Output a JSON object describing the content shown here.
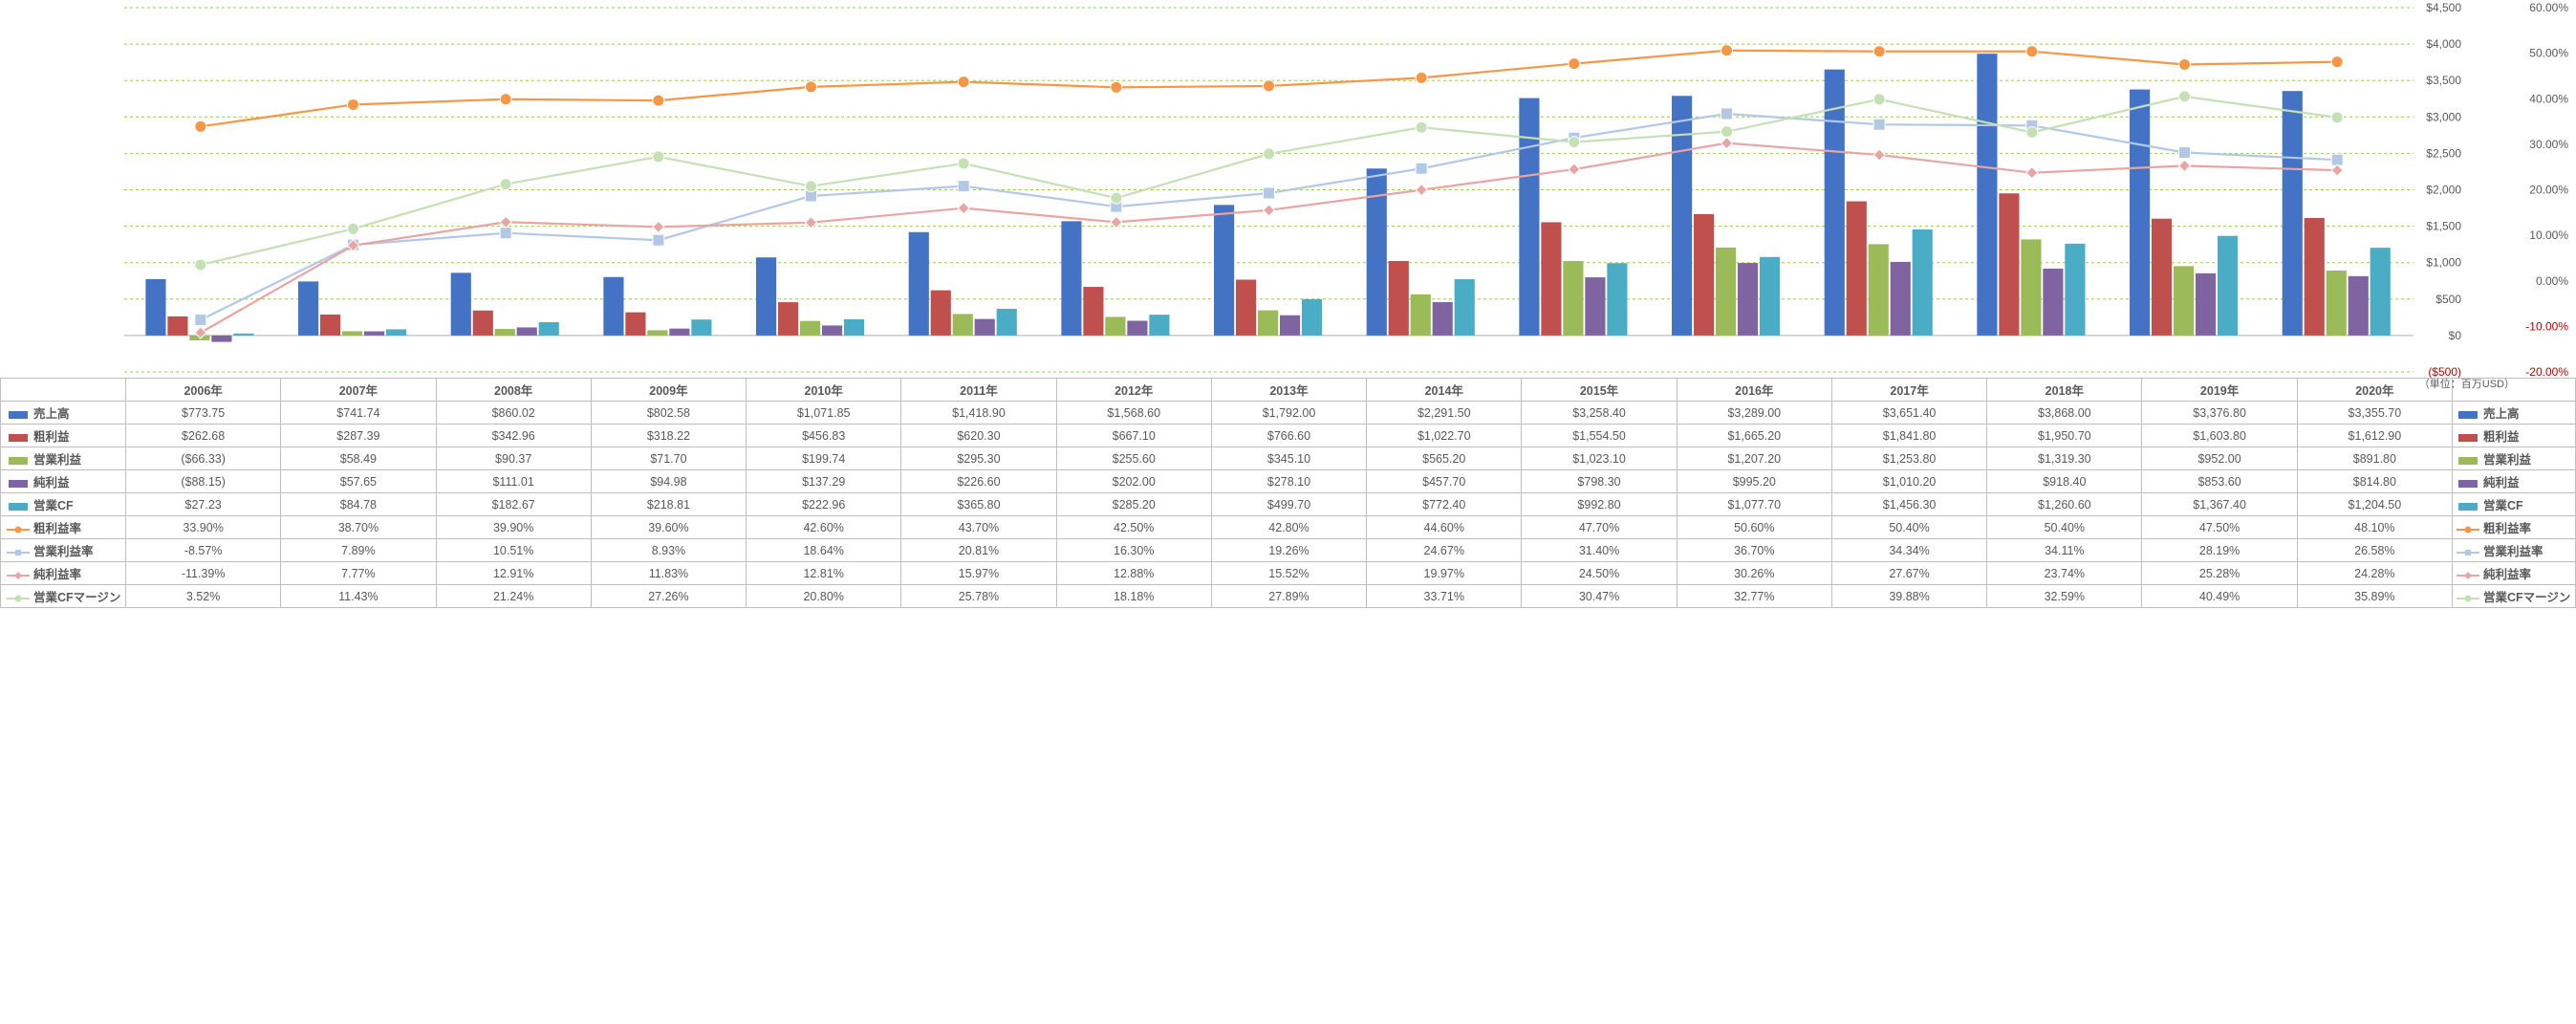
{
  "years": [
    "2006年",
    "2007年",
    "2008年",
    "2009年",
    "2010年",
    "2011年",
    "2012年",
    "2013年",
    "2014年",
    "2015年",
    "2016年",
    "2017年",
    "2018年",
    "2019年",
    "2020年"
  ],
  "unit_note": "（単位：百万USD）",
  "primary_axis": {
    "min": -500,
    "max": 4500,
    "step": 500,
    "format": "usd_paren_neg"
  },
  "secondary_axis": {
    "min": -20,
    "max": 60,
    "step": 10,
    "format": "percent2",
    "zero_color": "#c00000",
    "neg_color": "#c00000"
  },
  "series": [
    {
      "key": "revenue",
      "label": "売上高",
      "type": "bar",
      "axis": "primary",
      "color": "#4472c4",
      "values": [
        773.75,
        741.74,
        860.02,
        802.58,
        1071.85,
        1418.9,
        1568.6,
        1792.0,
        2291.5,
        3258.4,
        3289.0,
        3651.4,
        3868.0,
        3376.8,
        3355.7
      ],
      "display": [
        "$773.75",
        "$741.74",
        "$860.02",
        "$802.58",
        "$1,071.85",
        "$1,418.90",
        "$1,568.60",
        "$1,792.00",
        "$2,291.50",
        "$3,258.40",
        "$3,289.00",
        "$3,651.40",
        "$3,868.00",
        "$3,376.80",
        "$3,355.70"
      ]
    },
    {
      "key": "gross",
      "label": "粗利益",
      "type": "bar",
      "axis": "primary",
      "color": "#c0504d",
      "values": [
        262.68,
        287.39,
        342.96,
        318.22,
        456.83,
        620.3,
        667.1,
        766.6,
        1022.7,
        1554.5,
        1665.2,
        1841.8,
        1950.7,
        1603.8,
        1612.9
      ],
      "display": [
        "$262.68",
        "$287.39",
        "$342.96",
        "$318.22",
        "$456.83",
        "$620.30",
        "$667.10",
        "$766.60",
        "$1,022.70",
        "$1,554.50",
        "$1,665.20",
        "$1,841.80",
        "$1,950.70",
        "$1,603.80",
        "$1,612.90"
      ]
    },
    {
      "key": "opinc",
      "label": "営業利益",
      "type": "bar",
      "axis": "primary",
      "color": "#9bbb59",
      "values": [
        -66.33,
        58.49,
        90.37,
        71.7,
        199.74,
        295.3,
        255.6,
        345.1,
        565.2,
        1023.1,
        1207.2,
        1253.8,
        1319.3,
        952.0,
        891.8
      ],
      "display": [
        "($66.33)",
        "$58.49",
        "$90.37",
        "$71.70",
        "$199.74",
        "$295.30",
        "$255.60",
        "$345.10",
        "$565.20",
        "$1,023.10",
        "$1,207.20",
        "$1,253.80",
        "$1,319.30",
        "$952.00",
        "$891.80"
      ]
    },
    {
      "key": "netinc",
      "label": "純利益",
      "type": "bar",
      "axis": "primary",
      "color": "#8064a2",
      "values": [
        -88.15,
        57.65,
        111.01,
        94.98,
        137.29,
        226.6,
        202.0,
        278.1,
        457.7,
        798.3,
        995.2,
        1010.2,
        918.4,
        853.6,
        814.8
      ],
      "display": [
        "($88.15)",
        "$57.65",
        "$111.01",
        "$94.98",
        "$137.29",
        "$226.60",
        "$202.00",
        "$278.10",
        "$457.70",
        "$798.30",
        "$995.20",
        "$1,010.20",
        "$918.40",
        "$853.60",
        "$814.80"
      ]
    },
    {
      "key": "opcf",
      "label": "営業CF",
      "type": "bar",
      "axis": "primary",
      "color": "#4bacc6",
      "values": [
        27.23,
        84.78,
        182.67,
        218.81,
        222.96,
        365.8,
        285.2,
        499.7,
        772.4,
        992.8,
        1077.7,
        1456.3,
        1260.6,
        1367.4,
        1204.5
      ],
      "display": [
        "$27.23",
        "$84.78",
        "$182.67",
        "$218.81",
        "$222.96",
        "$365.80",
        "$285.20",
        "$499.70",
        "$772.40",
        "$992.80",
        "$1,077.70",
        "$1,456.30",
        "$1,260.60",
        "$1,367.40",
        "$1,204.50"
      ]
    },
    {
      "key": "grossm",
      "label": "粗利益率",
      "type": "line",
      "axis": "secondary",
      "color": "#f79646",
      "marker": "circle",
      "values": [
        33.9,
        38.7,
        39.9,
        39.6,
        42.6,
        43.7,
        42.5,
        42.8,
        44.6,
        47.7,
        50.6,
        50.4,
        50.4,
        47.5,
        48.1
      ],
      "display": [
        "33.90%",
        "38.70%",
        "39.90%",
        "39.60%",
        "42.60%",
        "43.70%",
        "42.50%",
        "42.80%",
        "44.60%",
        "47.70%",
        "50.60%",
        "50.40%",
        "50.40%",
        "47.50%",
        "48.10%"
      ]
    },
    {
      "key": "opm",
      "label": "営業利益率",
      "type": "line",
      "axis": "secondary",
      "color": "#b3c7e7",
      "marker": "square",
      "values": [
        -8.57,
        7.89,
        10.51,
        8.93,
        18.64,
        20.81,
        16.3,
        19.26,
        24.67,
        31.4,
        36.7,
        34.34,
        34.11,
        28.19,
        26.58
      ],
      "display": [
        "-8.57%",
        "7.89%",
        "10.51%",
        "8.93%",
        "18.64%",
        "20.81%",
        "16.30%",
        "19.26%",
        "24.67%",
        "31.40%",
        "36.70%",
        "34.34%",
        "34.11%",
        "28.19%",
        "26.58%"
      ]
    },
    {
      "key": "netm",
      "label": "純利益率",
      "type": "line",
      "axis": "secondary",
      "color": "#e8a5a3",
      "marker": "diamond",
      "values": [
        -11.39,
        7.77,
        12.91,
        11.83,
        12.81,
        15.97,
        12.88,
        15.52,
        19.97,
        24.5,
        30.26,
        27.67,
        23.74,
        25.28,
        24.28
      ],
      "display": [
        "-11.39%",
        "7.77%",
        "12.91%",
        "11.83%",
        "12.81%",
        "15.97%",
        "12.88%",
        "15.52%",
        "19.97%",
        "24.50%",
        "30.26%",
        "27.67%",
        "23.74%",
        "25.28%",
        "24.28%"
      ]
    },
    {
      "key": "cfm",
      "label": "営業CFマージン",
      "type": "line",
      "axis": "secondary",
      "color": "#c5e0b4",
      "marker": "circle",
      "values": [
        3.52,
        11.43,
        21.24,
        27.26,
        20.8,
        25.78,
        18.18,
        27.89,
        33.71,
        30.47,
        32.77,
        39.88,
        32.59,
        40.49,
        35.89
      ],
      "display": [
        "3.52%",
        "11.43%",
        "21.24%",
        "27.26%",
        "20.80%",
        "25.78%",
        "18.18%",
        "27.89%",
        "33.71%",
        "30.47%",
        "32.77%",
        "39.88%",
        "32.59%",
        "40.49%",
        "35.89%"
      ]
    }
  ],
  "chart_style": {
    "plot_bg": "#ffffff",
    "gridline_color": "#d9d9d9",
    "gridline_primary_color": "#92d050",
    "baseline_color": "#bfbfbf",
    "axis_font_size": 12,
    "bar_group_width_ratio": 0.72,
    "line_width": 2.2,
    "marker_size": 6
  }
}
